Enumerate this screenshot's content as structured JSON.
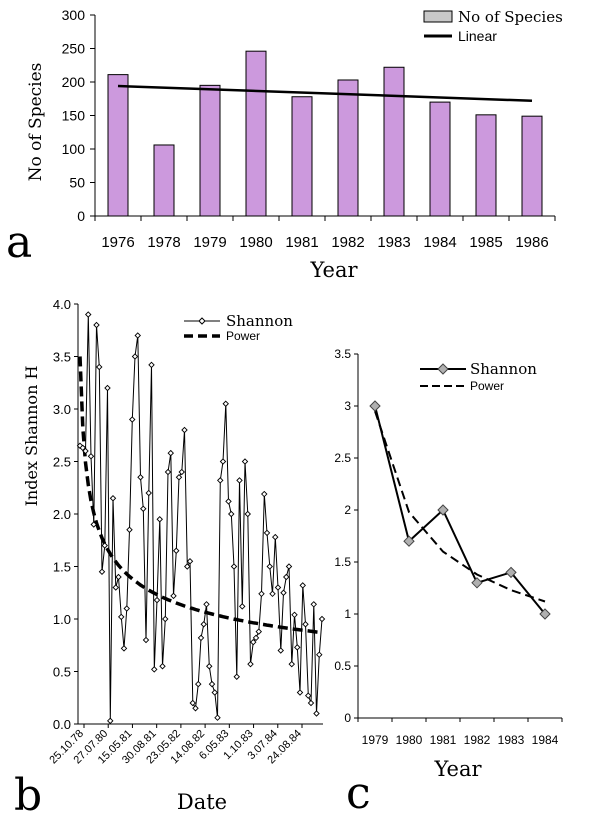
{
  "chart_data": [
    {
      "panel": "a",
      "type": "bar",
      "title": "",
      "xlabel": "Year",
      "ylabel": "No of Species",
      "ylim": [
        0,
        300
      ],
      "yticks": [
        0,
        50,
        100,
        150,
        200,
        250,
        300
      ],
      "categories": [
        "1976",
        "1978",
        "1979",
        "1980",
        "1981",
        "1982",
        "1983",
        "1984",
        "1985",
        "1986"
      ],
      "series": [
        {
          "name": "No of Species",
          "values": [
            211,
            106,
            195,
            246,
            178,
            203,
            222,
            170,
            151,
            149
          ],
          "color": "#cc99dd"
        }
      ],
      "trendline": {
        "name": "Linear",
        "start": 194,
        "end": 172
      },
      "legend": "top-right",
      "grid": false
    },
    {
      "panel": "b",
      "type": "line",
      "xlabel": "Date",
      "ylabel": "Index Shannon H",
      "ylim": [
        0,
        4
      ],
      "yticks": [
        "0.0",
        "0.5",
        "1.0",
        "1.5",
        "2.0",
        "2.5",
        "3.0",
        "3.5",
        "4.0"
      ],
      "xtick_labels": [
        "25.10.78",
        "27.07.80",
        "15.05.81",
        "30.08.81",
        "23.05.82",
        "14.08.82",
        "6.05.83",
        "1.10.83",
        "3.07.84",
        "24.08.84"
      ],
      "series": [
        {
          "name": "Shannon",
          "values": [
            2.65,
            2.63,
            2.6,
            3.9,
            2.55,
            1.9,
            3.8,
            3.4,
            1.45,
            1.7,
            3.2,
            0.03,
            2.15,
            1.3,
            1.4,
            1.02,
            0.72,
            1.1,
            1.85,
            2.9,
            3.5,
            3.7,
            2.35,
            2.05,
            0.8,
            2.2,
            3.42,
            0.52,
            1.18,
            1.95,
            0.55,
            1.0,
            2.4,
            2.58,
            1.22,
            1.65,
            2.35,
            2.4,
            2.8,
            1.5,
            1.55,
            0.2,
            0.15,
            0.38,
            0.82,
            0.95,
            1.14,
            0.55,
            0.38,
            0.3,
            0.06,
            2.32,
            2.5,
            3.05,
            2.12,
            2.0,
            1.5,
            0.45,
            2.32,
            1.12,
            2.5,
            2.0,
            0.57,
            0.78,
            0.82,
            0.88,
            1.24,
            2.19,
            1.82,
            1.5,
            1.24,
            1.78,
            1.3,
            0.7,
            1.25,
            1.4,
            1.5,
            0.57,
            1.04,
            0.73,
            0.3,
            1.32,
            0.95,
            0.27,
            0.2,
            1.14,
            0.1,
            0.66,
            1.0
          ],
          "marker": "diamond"
        }
      ],
      "trendline": {
        "name": "Power",
        "type": "power",
        "a": 3.5,
        "b": -0.31
      }
    },
    {
      "panel": "c",
      "type": "line",
      "xlabel": "Year",
      "ylabel": "",
      "ylim": [
        0,
        3.5
      ],
      "yticks": [
        "0",
        "0.5",
        "1",
        "1.5",
        "2",
        "2.5",
        "3",
        "3.5"
      ],
      "categories": [
        "1979",
        "1980",
        "1981",
        "1982",
        "1983",
        "1984"
      ],
      "series": [
        {
          "name": "Shannon",
          "values": [
            3.0,
            1.7,
            2.0,
            1.3,
            1.4,
            1.0
          ],
          "marker": "diamond",
          "color": "#b0b0b0"
        }
      ],
      "trendline": {
        "name": "Power",
        "values": [
          2.95,
          1.98,
          1.6,
          1.38,
          1.23,
          1.12
        ]
      }
    }
  ],
  "labels": {
    "a": "a",
    "b": "b",
    "c": "c"
  }
}
